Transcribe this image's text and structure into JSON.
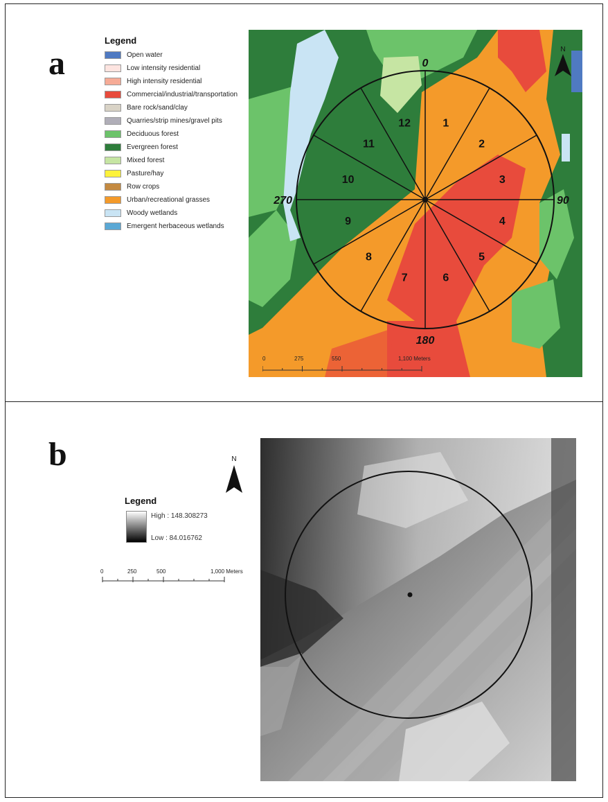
{
  "panel_a": {
    "letter": "a",
    "legend_title": "Legend",
    "legend_items": [
      {
        "label": "Open water",
        "color": "#4f7ac2"
      },
      {
        "label": "Low intensity residential",
        "color": "#fde4e0"
      },
      {
        "label": "High intensity residential",
        "color": "#f6ab96"
      },
      {
        "label": "Commercial/industrial/transportation",
        "color": "#e84b3c"
      },
      {
        "label": "Bare rock/sand/clay",
        "color": "#d9d3c6"
      },
      {
        "label": "Quarries/strip mines/gravel pits",
        "color": "#b0aeb8"
      },
      {
        "label": "Deciduous forest",
        "color": "#6cc36a"
      },
      {
        "label": "Evergreen forest",
        "color": "#2e7d3b"
      },
      {
        "label": "Mixed forest",
        "color": "#c6e5a3"
      },
      {
        "label": "Pasture/hay",
        "color": "#fdf23b"
      },
      {
        "label": "Row crops",
        "color": "#c48a41"
      },
      {
        "label": "Urban/recreational grasses",
        "color": "#f49a2a"
      },
      {
        "label": "Woody wetlands",
        "color": "#c9e4f4"
      },
      {
        "label": "Emergent herbaceous wetlands",
        "color": "#5aa8d5"
      }
    ],
    "sectors": [
      "1",
      "2",
      "3",
      "4",
      "5",
      "6",
      "7",
      "8",
      "9",
      "10",
      "11",
      "12"
    ],
    "directions": {
      "north": "0",
      "east": "90",
      "south": "180",
      "west": "270"
    },
    "north_label": "N",
    "scale": {
      "ticks": [
        "0",
        "275",
        "550",
        "1,100 Meters"
      ]
    }
  },
  "panel_b": {
    "letter": "b",
    "legend_title": "Legend",
    "high_label": "High : 148.308273",
    "low_label": "Low : 84.016762",
    "north_label": "N",
    "scale": {
      "ticks": [
        "0",
        "250",
        "500",
        "1,000 Meters"
      ]
    }
  }
}
